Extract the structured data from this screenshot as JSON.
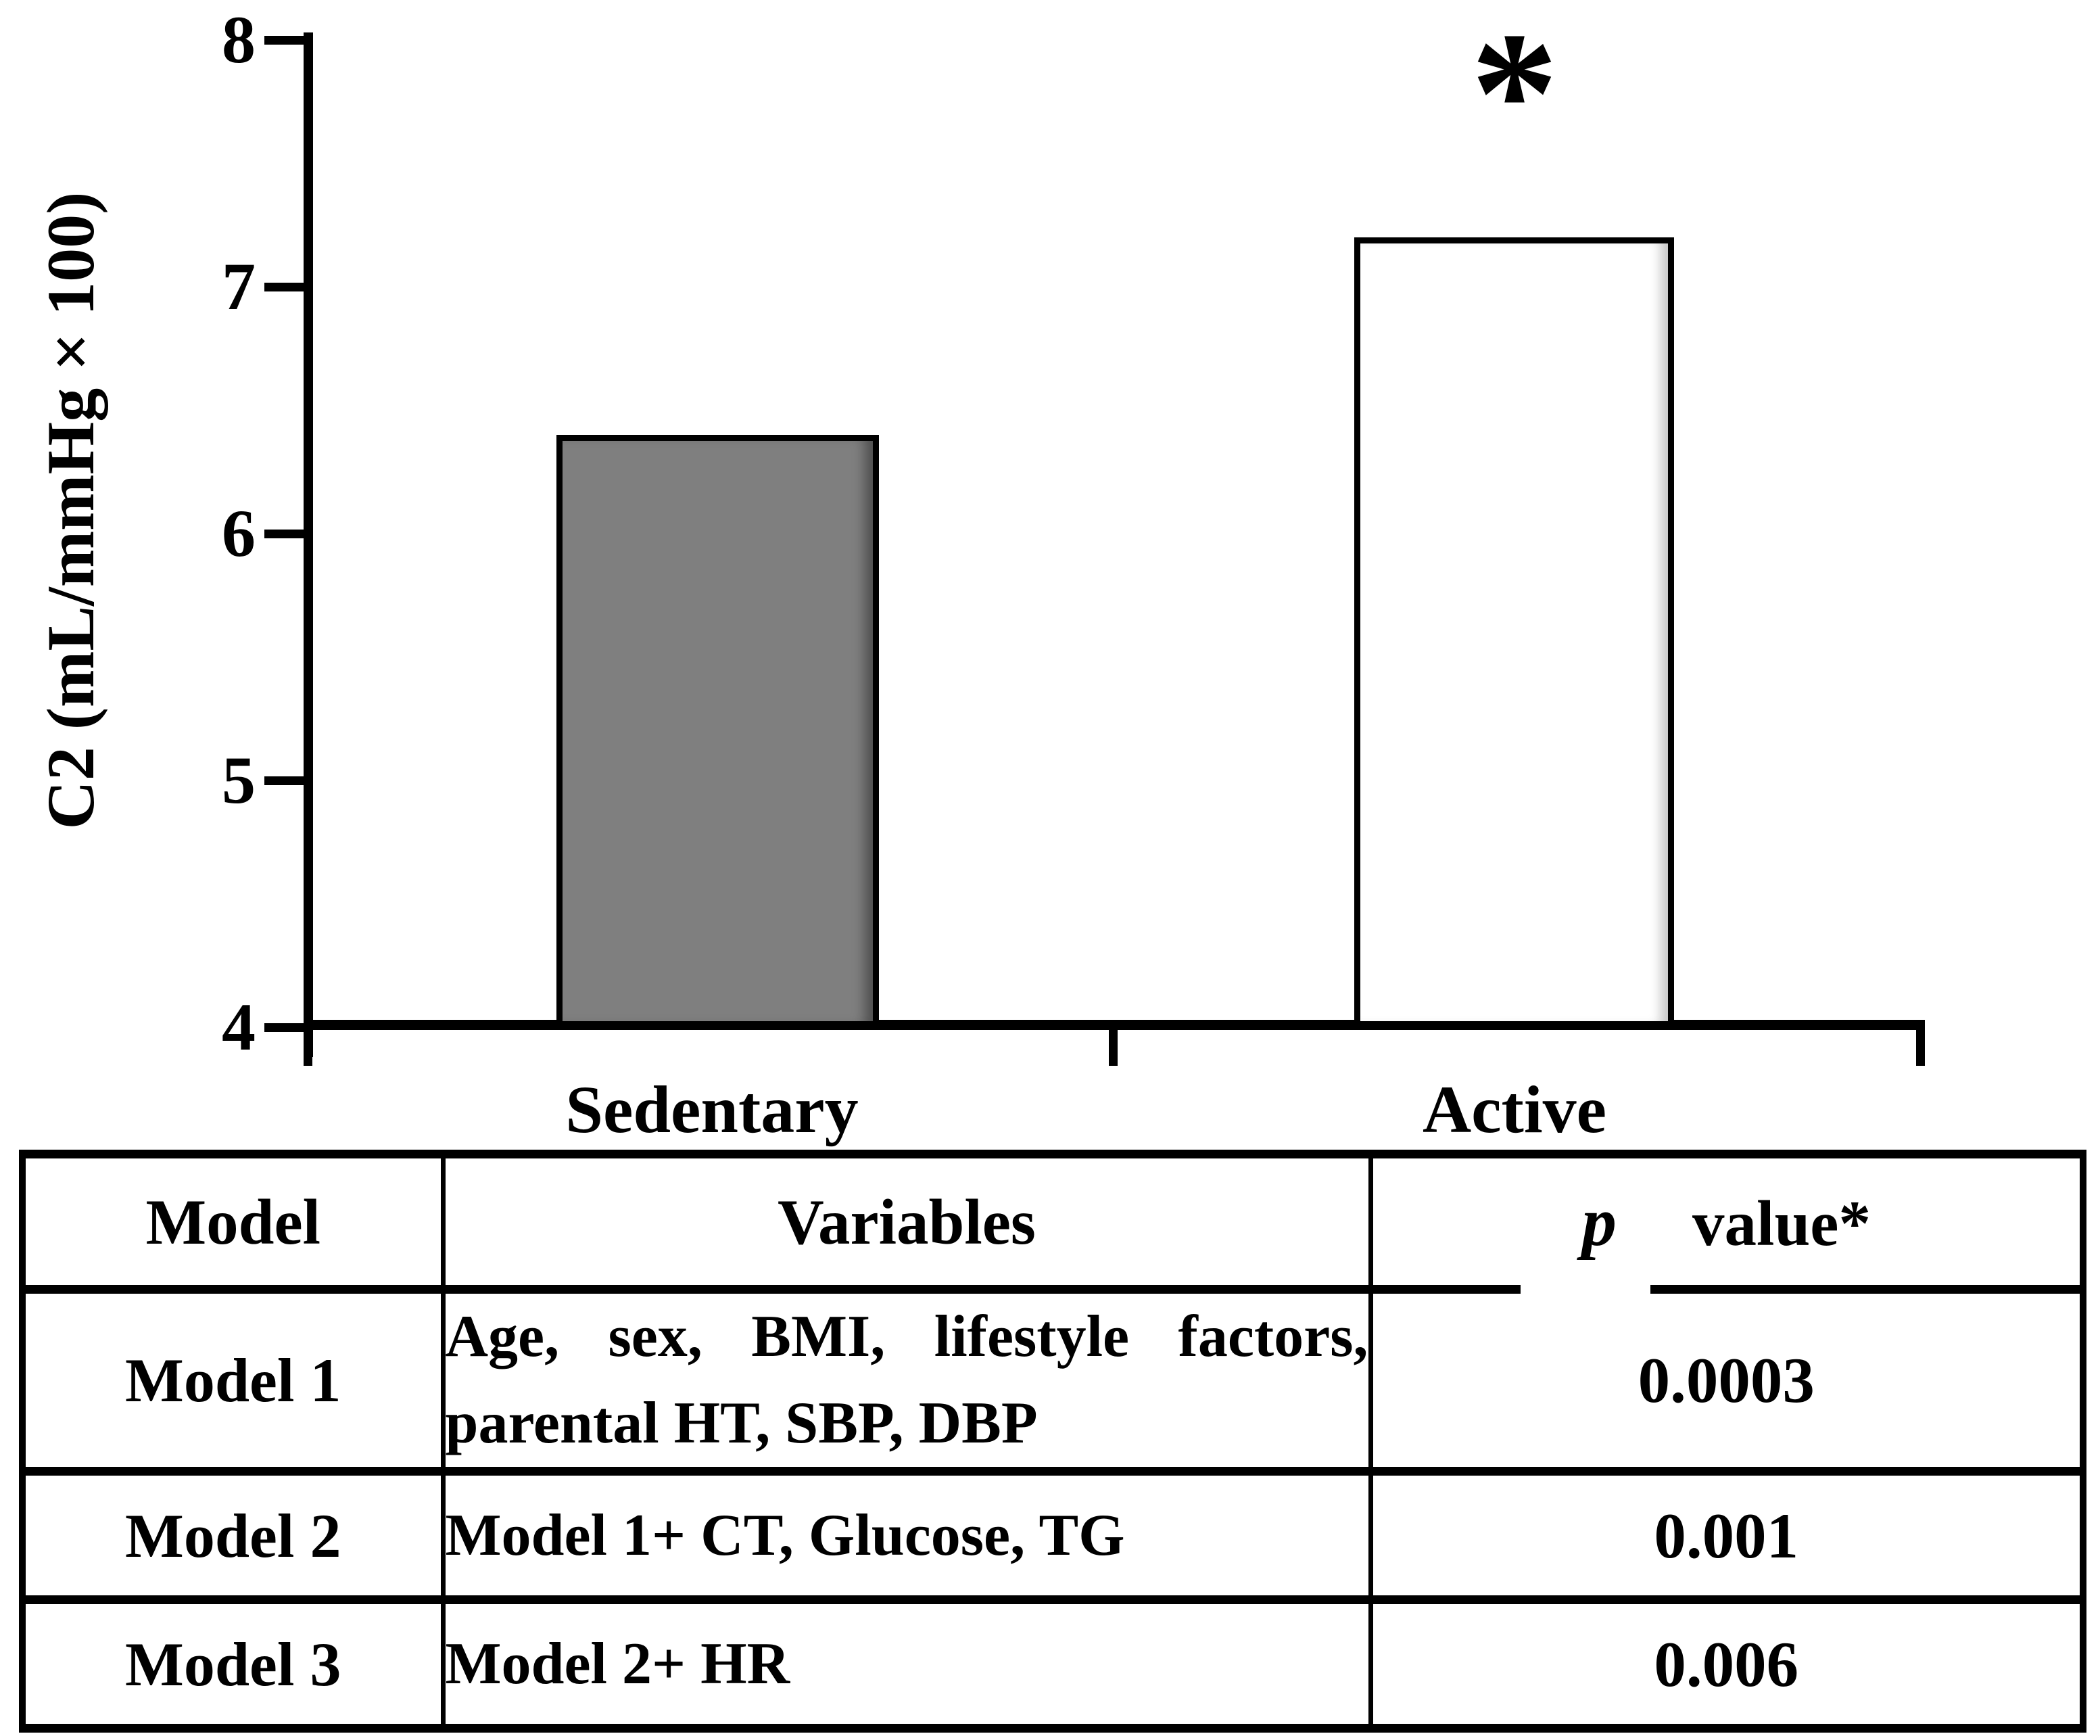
{
  "chart": {
    "y_tick_labels": [
      "8",
      "7",
      "6",
      "5",
      "4"
    ],
    "significance_marker": "*"
  },
  "chart_data": {
    "type": "bar",
    "categories": [
      "Sedentary",
      "Active"
    ],
    "values": [
      6.4,
      7.2
    ],
    "title": "",
    "xlabel": "",
    "ylabel": "C2 (mL/mmHg × 100)",
    "ylim": [
      4,
      8
    ],
    "yticks": [
      8,
      7,
      6,
      5,
      4
    ],
    "bar_colors": [
      "#7f7f7f",
      "#ffffff"
    ],
    "bar_border_color": "#000000",
    "grid": false,
    "legend": false,
    "annotations": [
      {
        "category": "Active",
        "text": "*",
        "meaning_note": "marker shown above Active bar"
      }
    ]
  },
  "table": {
    "headers": {
      "model": "Model",
      "variables": "Variables",
      "p_italic": "p",
      "p_rest": "value*"
    },
    "rows": [
      {
        "model": "Model 1",
        "variables_line1": "Age, sex, BMI, lifestyle factors,",
        "variables_line2": "parental HT, SBP, DBP",
        "p_value": "0.0003"
      },
      {
        "model": "Model 2",
        "variables_line1": "Model 1+ CT, Glucose, TG",
        "variables_line2": "",
        "p_value": "0.001"
      },
      {
        "model": "Model 3",
        "variables_line1": "Model 2+ HR",
        "variables_line2": "",
        "p_value": "0.006"
      }
    ]
  }
}
